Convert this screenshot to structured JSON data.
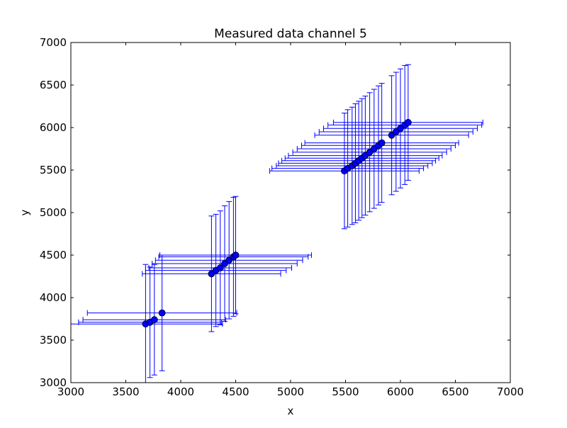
{
  "chart_data": {
    "type": "scatter",
    "title": "Measured data channel 5",
    "xlabel": "x",
    "ylabel": "y",
    "xlim": [
      3000,
      7000
    ],
    "ylim": [
      3000,
      7000
    ],
    "xticks": [
      "3000",
      "3500",
      "4000",
      "4500",
      "5000",
      "5500",
      "6000",
      "6500",
      "7000"
    ],
    "yticks": [
      "3000",
      "3500",
      "4000",
      "4500",
      "5000",
      "5500",
      "6000",
      "6500",
      "7000"
    ],
    "grid": false,
    "marker_color": "#0000ff",
    "errorbar_color": "#0000ff",
    "series": [
      {
        "points": [
          {
            "x": 3680,
            "y": 3690,
            "xerr": 700,
            "yerr": 700
          },
          {
            "x": 3720,
            "y": 3710,
            "xerr": 650,
            "yerr": 650
          },
          {
            "x": 3760,
            "y": 3740,
            "xerr": 650,
            "yerr": 650
          },
          {
            "x": 3830,
            "y": 3820,
            "xerr": 680,
            "yerr": 680
          },
          {
            "x": 4280,
            "y": 4280,
            "xerr": 630,
            "yerr": 680
          },
          {
            "x": 4320,
            "y": 4320,
            "xerr": 640,
            "yerr": 660
          },
          {
            "x": 4360,
            "y": 4350,
            "xerr": 650,
            "yerr": 670
          },
          {
            "x": 4400,
            "y": 4400,
            "xerr": 660,
            "yerr": 680
          },
          {
            "x": 4440,
            "y": 4440,
            "xerr": 670,
            "yerr": 690
          },
          {
            "x": 4480,
            "y": 4480,
            "xerr": 680,
            "yerr": 700
          },
          {
            "x": 4500,
            "y": 4500,
            "xerr": 690,
            "yerr": 690
          },
          {
            "x": 5490,
            "y": 5490,
            "xerr": 680,
            "yerr": 680
          },
          {
            "x": 5520,
            "y": 5520,
            "xerr": 690,
            "yerr": 690
          },
          {
            "x": 5560,
            "y": 5550,
            "xerr": 690,
            "yerr": 690
          },
          {
            "x": 5590,
            "y": 5580,
            "xerr": 700,
            "yerr": 700
          },
          {
            "x": 5620,
            "y": 5610,
            "xerr": 700,
            "yerr": 700
          },
          {
            "x": 5650,
            "y": 5640,
            "xerr": 700,
            "yerr": 700
          },
          {
            "x": 5680,
            "y": 5670,
            "xerr": 700,
            "yerr": 700
          },
          {
            "x": 5720,
            "y": 5710,
            "xerr": 700,
            "yerr": 700
          },
          {
            "x": 5760,
            "y": 5750,
            "xerr": 700,
            "yerr": 700
          },
          {
            "x": 5800,
            "y": 5790,
            "xerr": 700,
            "yerr": 700
          },
          {
            "x": 5830,
            "y": 5820,
            "xerr": 700,
            "yerr": 700
          },
          {
            "x": 5920,
            "y": 5910,
            "xerr": 700,
            "yerr": 700
          },
          {
            "x": 5960,
            "y": 5950,
            "xerr": 700,
            "yerr": 700
          },
          {
            "x": 6000,
            "y": 5990,
            "xerr": 700,
            "yerr": 700
          },
          {
            "x": 6040,
            "y": 6030,
            "xerr": 700,
            "yerr": 700
          },
          {
            "x": 6070,
            "y": 6060,
            "xerr": 680,
            "yerr": 680
          }
        ]
      }
    ]
  }
}
